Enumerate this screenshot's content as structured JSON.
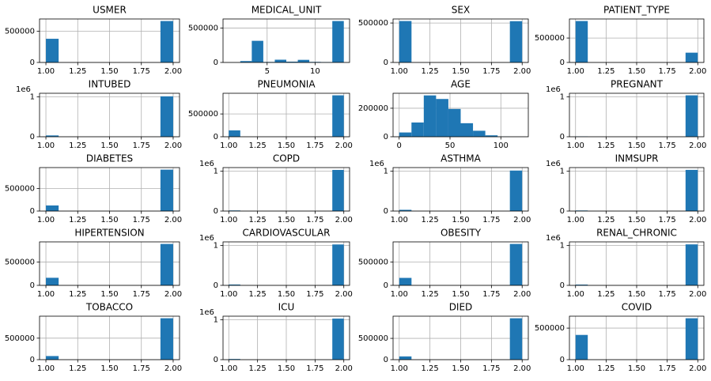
{
  "chart_data": [
    {
      "type": "histogram",
      "title": "USMER",
      "bins": [
        1,
        1.1,
        1.2,
        1.3,
        1.4,
        1.5,
        1.6,
        1.7,
        1.8,
        1.9,
        2
      ],
      "counts": [
        380000,
        0,
        0,
        0,
        0,
        0,
        0,
        0,
        0,
        665000
      ],
      "xlim": [
        0.95,
        2.05
      ],
      "xticks": [
        {
          "value": 1,
          "label": "1.00"
        },
        {
          "value": 1.25,
          "label": "1.25"
        },
        {
          "value": 1.5,
          "label": "1.50"
        },
        {
          "value": 1.75,
          "label": "1.75"
        },
        {
          "value": 2,
          "label": "2.00"
        }
      ],
      "ylim": [
        0,
        698000
      ],
      "yticks": [
        0,
        500000
      ],
      "grid": true,
      "color": "#1f77b4"
    },
    {
      "type": "histogram",
      "title": "MEDICAL_UNIT",
      "bins": [
        1,
        2.2,
        3.4,
        4.6,
        5.8,
        7,
        8.2,
        9.4,
        10.6,
        11.8,
        13
      ],
      "counts": [
        150,
        20000,
        315000,
        7000,
        40000,
        11300,
        38000,
        7900,
        5600,
        603000
      ],
      "xlim": [
        0.4,
        13.6
      ],
      "xticks": [
        5,
        10
      ],
      "ylim": [
        0,
        633000
      ],
      "yticks": [
        0,
        500000
      ],
      "grid": true,
      "color": "#1f77b4"
    },
    {
      "type": "histogram",
      "title": "SEX",
      "bins": [
        1,
        1.1,
        1.2,
        1.3,
        1.4,
        1.5,
        1.6,
        1.7,
        1.8,
        1.9,
        2
      ],
      "counts": [
        525000,
        0,
        0,
        0,
        0,
        0,
        0,
        0,
        0,
        523000
      ],
      "xlim": [
        0.95,
        2.05
      ],
      "xticks": [
        {
          "value": 1,
          "label": "1.00"
        },
        {
          "value": 1.25,
          "label": "1.25"
        },
        {
          "value": 1.5,
          "label": "1.50"
        },
        {
          "value": 1.75,
          "label": "1.75"
        },
        {
          "value": 2,
          "label": "2.00"
        }
      ],
      "ylim": [
        0,
        551000
      ],
      "yticks": [
        0,
        500000
      ],
      "grid": true,
      "color": "#1f77b4"
    },
    {
      "type": "histogram",
      "title": "PATIENT_TYPE",
      "bins": [
        1,
        1.1,
        1.2,
        1.3,
        1.4,
        1.5,
        1.6,
        1.7,
        1.8,
        1.9,
        2
      ],
      "counts": [
        848000,
        0,
        0,
        0,
        0,
        0,
        0,
        0,
        0,
        200000
      ],
      "xlim": [
        0.95,
        2.05
      ],
      "xticks": [
        {
          "value": 1,
          "label": "1.00"
        },
        {
          "value": 1.25,
          "label": "1.25"
        },
        {
          "value": 1.5,
          "label": "1.50"
        },
        {
          "value": 1.75,
          "label": "1.75"
        },
        {
          "value": 2,
          "label": "2.00"
        }
      ],
      "ylim": [
        0,
        890000
      ],
      "yticks": [
        0,
        500000
      ],
      "grid": true,
      "color": "#1f77b4"
    },
    {
      "type": "histogram",
      "title": "INTUBED",
      "offset_label": "1e6",
      "bins": [
        1,
        1.1,
        1.2,
        1.3,
        1.4,
        1.5,
        1.6,
        1.7,
        1.8,
        1.9,
        2
      ],
      "counts": [
        33000,
        0,
        0,
        0,
        0,
        0,
        0,
        0,
        0,
        1015000
      ],
      "xlim": [
        0.95,
        2.05
      ],
      "xticks": [
        {
          "value": 1,
          "label": "1.00"
        },
        {
          "value": 1.25,
          "label": "1.25"
        },
        {
          "value": 1.5,
          "label": "1.50"
        },
        {
          "value": 1.75,
          "label": "1.75"
        },
        {
          "value": 2,
          "label": "2.00"
        }
      ],
      "ylim": [
        0,
        1092000
      ],
      "yticks": [
        0,
        {
          "value": 1000000,
          "label": "1"
        }
      ],
      "grid": true,
      "color": "#1f77b4"
    },
    {
      "type": "histogram",
      "title": "PNEUMONIA",
      "bins": [
        1,
        1.1,
        1.2,
        1.3,
        1.4,
        1.5,
        1.6,
        1.7,
        1.8,
        1.9,
        2
      ],
      "counts": [
        140000,
        0,
        0,
        0,
        0,
        0,
        0,
        0,
        0,
        908000
      ],
      "xlim": [
        0.95,
        2.05
      ],
      "xticks": [
        {
          "value": 1,
          "label": "1.00"
        },
        {
          "value": 1.25,
          "label": "1.25"
        },
        {
          "value": 1.5,
          "label": "1.50"
        },
        {
          "value": 1.75,
          "label": "1.75"
        },
        {
          "value": 2,
          "label": "2.00"
        }
      ],
      "ylim": [
        0,
        953000
      ],
      "yticks": [
        0,
        500000
      ],
      "grid": true,
      "color": "#1f77b4"
    },
    {
      "type": "histogram",
      "title": "AGE",
      "bins": [
        0,
        12.1,
        24.2,
        36.3,
        48.4,
        60.5,
        72.6,
        84.7,
        96.8,
        108.9,
        121
      ],
      "counts": [
        30000,
        100000,
        290000,
        265000,
        195000,
        95000,
        42000,
        10000,
        1000,
        50
      ],
      "xlim": [
        -6,
        127
      ],
      "xticks": [
        0,
        50,
        100
      ],
      "ylim": [
        0,
        305000
      ],
      "yticks": [
        0,
        200000
      ],
      "grid": true,
      "color": "#1f77b4"
    },
    {
      "type": "histogram",
      "title": "PREGNANT",
      "offset_label": "1e6",
      "bins": [
        1,
        1.1,
        1.2,
        1.3,
        1.4,
        1.5,
        1.6,
        1.7,
        1.8,
        1.9,
        2
      ],
      "counts": [
        8000,
        0,
        0,
        0,
        0,
        0,
        0,
        0,
        0,
        1040000
      ],
      "xlim": [
        0.95,
        2.05
      ],
      "xticks": [
        {
          "value": 1,
          "label": "1.00"
        },
        {
          "value": 1.25,
          "label": "1.25"
        },
        {
          "value": 1.5,
          "label": "1.50"
        },
        {
          "value": 1.75,
          "label": "1.75"
        },
        {
          "value": 2,
          "label": "2.00"
        }
      ],
      "ylim": [
        0,
        1092000
      ],
      "yticks": [
        0,
        {
          "value": 1000000,
          "label": "1"
        }
      ],
      "grid": true,
      "color": "#1f77b4"
    },
    {
      "type": "histogram",
      "title": "DIABETES",
      "bins": [
        1,
        1.1,
        1.2,
        1.3,
        1.4,
        1.5,
        1.6,
        1.7,
        1.8,
        1.9,
        2
      ],
      "counts": [
        125000,
        0,
        0,
        0,
        0,
        0,
        0,
        0,
        0,
        923000
      ],
      "xlim": [
        0.95,
        2.05
      ],
      "xticks": [
        {
          "value": 1,
          "label": "1.00"
        },
        {
          "value": 1.25,
          "label": "1.25"
        },
        {
          "value": 1.5,
          "label": "1.50"
        },
        {
          "value": 1.75,
          "label": "1.75"
        },
        {
          "value": 2,
          "label": "2.00"
        }
      ],
      "ylim": [
        0,
        969000
      ],
      "yticks": [
        0,
        500000
      ],
      "grid": true,
      "color": "#1f77b4"
    },
    {
      "type": "histogram",
      "title": "COPD",
      "offset_label": "1e6",
      "bins": [
        1,
        1.1,
        1.2,
        1.3,
        1.4,
        1.5,
        1.6,
        1.7,
        1.8,
        1.9,
        2
      ],
      "counts": [
        15000,
        0,
        0,
        0,
        0,
        0,
        0,
        0,
        0,
        1033000
      ],
      "xlim": [
        0.95,
        2.05
      ],
      "xticks": [
        {
          "value": 1,
          "label": "1.00"
        },
        {
          "value": 1.25,
          "label": "1.25"
        },
        {
          "value": 1.5,
          "label": "1.50"
        },
        {
          "value": 1.75,
          "label": "1.75"
        },
        {
          "value": 2,
          "label": "2.00"
        }
      ],
      "ylim": [
        0,
        1092000
      ],
      "yticks": [
        0,
        {
          "value": 1000000,
          "label": "1"
        }
      ],
      "grid": true,
      "color": "#1f77b4"
    },
    {
      "type": "histogram",
      "title": "ASTHMA",
      "offset_label": "1e6",
      "bins": [
        1,
        1.1,
        1.2,
        1.3,
        1.4,
        1.5,
        1.6,
        1.7,
        1.8,
        1.9,
        2
      ],
      "counts": [
        31000,
        0,
        0,
        0,
        0,
        0,
        0,
        0,
        0,
        1017000
      ],
      "xlim": [
        0.95,
        2.05
      ],
      "xticks": [
        {
          "value": 1,
          "label": "1.00"
        },
        {
          "value": 1.25,
          "label": "1.25"
        },
        {
          "value": 1.5,
          "label": "1.50"
        },
        {
          "value": 1.75,
          "label": "1.75"
        },
        {
          "value": 2,
          "label": "2.00"
        }
      ],
      "ylim": [
        0,
        1092000
      ],
      "yticks": [
        0,
        {
          "value": 1000000,
          "label": "1"
        }
      ],
      "grid": true,
      "color": "#1f77b4"
    },
    {
      "type": "histogram",
      "title": "INMSUPR",
      "offset_label": "1e6",
      "bins": [
        1,
        1.1,
        1.2,
        1.3,
        1.4,
        1.5,
        1.6,
        1.7,
        1.8,
        1.9,
        2
      ],
      "counts": [
        14000,
        0,
        0,
        0,
        0,
        0,
        0,
        0,
        0,
        1034000
      ],
      "xlim": [
        0.95,
        2.05
      ],
      "xticks": [
        {
          "value": 1,
          "label": "1.00"
        },
        {
          "value": 1.25,
          "label": "1.25"
        },
        {
          "value": 1.5,
          "label": "1.50"
        },
        {
          "value": 1.75,
          "label": "1.75"
        },
        {
          "value": 2,
          "label": "2.00"
        }
      ],
      "ylim": [
        0,
        1092000
      ],
      "yticks": [
        0,
        {
          "value": 1000000,
          "label": "1"
        }
      ],
      "grid": true,
      "color": "#1f77b4"
    },
    {
      "type": "histogram",
      "title": "HIPERTENSION",
      "bins": [
        1,
        1.1,
        1.2,
        1.3,
        1.4,
        1.5,
        1.6,
        1.7,
        1.8,
        1.9,
        2
      ],
      "counts": [
        162000,
        0,
        0,
        0,
        0,
        0,
        0,
        0,
        0,
        886000
      ],
      "xlim": [
        0.95,
        2.05
      ],
      "xticks": [
        {
          "value": 1,
          "label": "1.00"
        },
        {
          "value": 1.25,
          "label": "1.25"
        },
        {
          "value": 1.5,
          "label": "1.50"
        },
        {
          "value": 1.75,
          "label": "1.75"
        },
        {
          "value": 2,
          "label": "2.00"
        }
      ],
      "ylim": [
        0,
        930000
      ],
      "yticks": [
        0,
        500000
      ],
      "grid": true,
      "color": "#1f77b4"
    },
    {
      "type": "histogram",
      "title": "CARDIOVASCULAR",
      "offset_label": "1e6",
      "bins": [
        1,
        1.1,
        1.2,
        1.3,
        1.4,
        1.5,
        1.6,
        1.7,
        1.8,
        1.9,
        2
      ],
      "counts": [
        21000,
        0,
        0,
        0,
        0,
        0,
        0,
        0,
        0,
        1027000
      ],
      "xlim": [
        0.95,
        2.05
      ],
      "xticks": [
        {
          "value": 1,
          "label": "1.00"
        },
        {
          "value": 1.25,
          "label": "1.25"
        },
        {
          "value": 1.5,
          "label": "1.50"
        },
        {
          "value": 1.75,
          "label": "1.75"
        },
        {
          "value": 2,
          "label": "2.00"
        }
      ],
      "ylim": [
        0,
        1092000
      ],
      "yticks": [
        0,
        {
          "value": 1000000,
          "label": "1"
        }
      ],
      "grid": true,
      "color": "#1f77b4"
    },
    {
      "type": "histogram",
      "title": "OBESITY",
      "bins": [
        1,
        1.1,
        1.2,
        1.3,
        1.4,
        1.5,
        1.6,
        1.7,
        1.8,
        1.9,
        2
      ],
      "counts": [
        160000,
        0,
        0,
        0,
        0,
        0,
        0,
        0,
        0,
        888000
      ],
      "xlim": [
        0.95,
        2.05
      ],
      "xticks": [
        {
          "value": 1,
          "label": "1.00"
        },
        {
          "value": 1.25,
          "label": "1.25"
        },
        {
          "value": 1.5,
          "label": "1.50"
        },
        {
          "value": 1.75,
          "label": "1.75"
        },
        {
          "value": 2,
          "label": "2.00"
        }
      ],
      "ylim": [
        0,
        932000
      ],
      "yticks": [
        0,
        500000
      ],
      "grid": true,
      "color": "#1f77b4"
    },
    {
      "type": "histogram",
      "title": "RENAL_CHRONIC",
      "offset_label": "1e6",
      "bins": [
        1,
        1.1,
        1.2,
        1.3,
        1.4,
        1.5,
        1.6,
        1.7,
        1.8,
        1.9,
        2
      ],
      "counts": [
        19000,
        0,
        0,
        0,
        0,
        0,
        0,
        0,
        0,
        1029000
      ],
      "xlim": [
        0.95,
        2.05
      ],
      "xticks": [
        {
          "value": 1,
          "label": "1.00"
        },
        {
          "value": 1.25,
          "label": "1.25"
        },
        {
          "value": 1.5,
          "label": "1.50"
        },
        {
          "value": 1.75,
          "label": "1.75"
        },
        {
          "value": 2,
          "label": "2.00"
        }
      ],
      "ylim": [
        0,
        1092000
      ],
      "yticks": [
        0,
        {
          "value": 1000000,
          "label": "1"
        }
      ],
      "grid": true,
      "color": "#1f77b4"
    },
    {
      "type": "histogram",
      "title": "TOBACCO",
      "bins": [
        1,
        1.1,
        1.2,
        1.3,
        1.4,
        1.5,
        1.6,
        1.7,
        1.8,
        1.9,
        2
      ],
      "counts": [
        84000,
        0,
        0,
        0,
        0,
        0,
        0,
        0,
        0,
        964000
      ],
      "xlim": [
        0.95,
        2.05
      ],
      "xticks": [
        {
          "value": 1,
          "label": "1.00"
        },
        {
          "value": 1.25,
          "label": "1.25"
        },
        {
          "value": 1.5,
          "label": "1.50"
        },
        {
          "value": 1.75,
          "label": "1.75"
        },
        {
          "value": 2,
          "label": "2.00"
        }
      ],
      "ylim": [
        0,
        1012000
      ],
      "yticks": [
        0,
        500000
      ],
      "grid": true,
      "color": "#1f77b4"
    },
    {
      "type": "histogram",
      "title": "ICU",
      "offset_label": "1e6",
      "bins": [
        1,
        1.1,
        1.2,
        1.3,
        1.4,
        1.5,
        1.6,
        1.7,
        1.8,
        1.9,
        2
      ],
      "counts": [
        17000,
        0,
        0,
        0,
        0,
        0,
        0,
        0,
        0,
        1031000
      ],
      "xlim": [
        0.95,
        2.05
      ],
      "xticks": [
        {
          "value": 1,
          "label": "1.00"
        },
        {
          "value": 1.25,
          "label": "1.25"
        },
        {
          "value": 1.5,
          "label": "1.50"
        },
        {
          "value": 1.75,
          "label": "1.75"
        },
        {
          "value": 2,
          "label": "2.00"
        }
      ],
      "ylim": [
        0,
        1092000
      ],
      "yticks": [
        0,
        {
          "value": 1000000,
          "label": "1"
        }
      ],
      "grid": true,
      "color": "#1f77b4"
    },
    {
      "type": "histogram",
      "title": "DIED",
      "bins": [
        1,
        1.1,
        1.2,
        1.3,
        1.4,
        1.5,
        1.6,
        1.7,
        1.8,
        1.9,
        2
      ],
      "counts": [
        76000,
        0,
        0,
        0,
        0,
        0,
        0,
        0,
        0,
        972000
      ],
      "xlim": [
        0.95,
        2.05
      ],
      "xticks": [
        {
          "value": 1,
          "label": "1.00"
        },
        {
          "value": 1.25,
          "label": "1.25"
        },
        {
          "value": 1.5,
          "label": "1.50"
        },
        {
          "value": 1.75,
          "label": "1.75"
        },
        {
          "value": 2,
          "label": "2.00"
        }
      ],
      "ylim": [
        0,
        1021000
      ],
      "yticks": [
        0,
        500000
      ],
      "grid": true,
      "color": "#1f77b4"
    },
    {
      "type": "histogram",
      "title": "COVID",
      "bins": [
        1,
        1.1,
        1.2,
        1.3,
        1.4,
        1.5,
        1.6,
        1.7,
        1.8,
        1.9,
        2
      ],
      "counts": [
        392000,
        0,
        0,
        0,
        0,
        0,
        0,
        0,
        0,
        656000
      ],
      "xlim": [
        0.95,
        2.05
      ],
      "xticks": [
        {
          "value": 1,
          "label": "1.00"
        },
        {
          "value": 1.25,
          "label": "1.25"
        },
        {
          "value": 1.5,
          "label": "1.50"
        },
        {
          "value": 1.75,
          "label": "1.75"
        },
        {
          "value": 2,
          "label": "2.00"
        }
      ],
      "ylim": [
        0,
        689000
      ],
      "yticks": [
        0,
        500000
      ],
      "grid": true,
      "color": "#1f77b4"
    }
  ]
}
